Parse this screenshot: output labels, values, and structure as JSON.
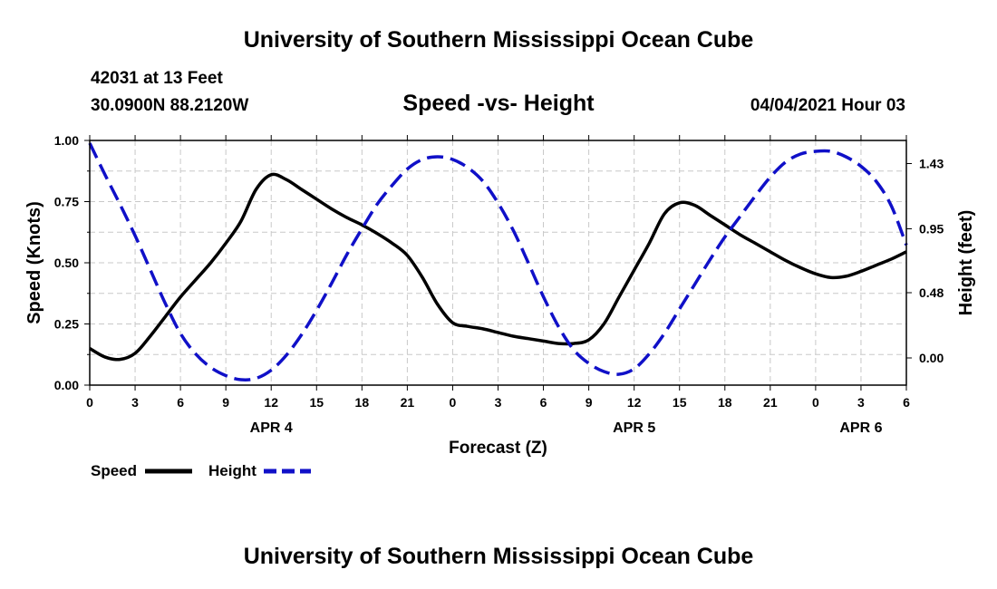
{
  "header": {
    "title": "University of Southern Mississippi Ocean Cube",
    "station": "42031 at 13 Feet",
    "coordinates": "30.0900N  88.2120W",
    "chart_title": "Speed -vs- Height",
    "datetime": "04/04/2021 Hour 03"
  },
  "footer": {
    "title": "University of Southern Mississippi Ocean Cube"
  },
  "colors": {
    "speed": "#000000",
    "height": "#1010c8",
    "grid": "#c8c8c8"
  },
  "chart_data": {
    "type": "line",
    "title": "Speed -vs- Height",
    "xlabel": "Forecast (Z)",
    "ylabel": "Speed (Knots)",
    "y2label": "Height (feet)",
    "x_range": [
      0,
      54
    ],
    "x_ticks": [
      0,
      3,
      6,
      9,
      12,
      15,
      18,
      21,
      24,
      27,
      30,
      33,
      36,
      39,
      42,
      45,
      48,
      51,
      54
    ],
    "x_tick_labels": [
      "0",
      "3",
      "6",
      "9",
      "12",
      "15",
      "18",
      "21",
      "0",
      "3",
      "6",
      "9",
      "12",
      "15",
      "18",
      "21",
      "0",
      "3",
      "6"
    ],
    "date_labels": [
      {
        "hour": 12,
        "label": "APR 4"
      },
      {
        "hour": 36,
        "label": "APR 5"
      },
      {
        "hour": 51,
        "label": "APR 6"
      }
    ],
    "ylim": [
      0,
      1.0
    ],
    "y_ticks": [
      0,
      0.25,
      0.5,
      0.75,
      1.0
    ],
    "y_tick_labels": [
      "0.00",
      "0.25",
      "0.50",
      "0.75",
      "1.00"
    ],
    "y2lim": [
      -0.2,
      1.6
    ],
    "y2_ticks": [
      0.0,
      0.48,
      0.95,
      1.43
    ],
    "y2_tick_labels": [
      "0.00",
      "0.48",
      "0.95",
      "1.43"
    ],
    "legend": [
      {
        "name": "Speed",
        "style": "solid"
      },
      {
        "name": "Height",
        "style": "dashed"
      }
    ],
    "series": [
      {
        "name": "Speed",
        "axis": "left",
        "style": "solid",
        "x": [
          0,
          1,
          2,
          3,
          4,
          5,
          6,
          7,
          8,
          9,
          10,
          11,
          12,
          13,
          14,
          15,
          16,
          17,
          18,
          19,
          20,
          21,
          22,
          23,
          24,
          25,
          26,
          27,
          28,
          29,
          30,
          31,
          32,
          33,
          34,
          35,
          36,
          37,
          38,
          39,
          40,
          41,
          42,
          43,
          44,
          45,
          46,
          47,
          48,
          49,
          50,
          51,
          52,
          53,
          54
        ],
        "values": [
          0.15,
          0.115,
          0.105,
          0.13,
          0.2,
          0.28,
          0.36,
          0.43,
          0.5,
          0.58,
          0.67,
          0.8,
          0.86,
          0.84,
          0.8,
          0.76,
          0.72,
          0.685,
          0.655,
          0.62,
          0.58,
          0.53,
          0.44,
          0.33,
          0.255,
          0.24,
          0.23,
          0.215,
          0.2,
          0.19,
          0.18,
          0.17,
          0.17,
          0.185,
          0.25,
          0.36,
          0.47,
          0.58,
          0.7,
          0.745,
          0.735,
          0.695,
          0.655,
          0.615,
          0.58,
          0.545,
          0.51,
          0.48,
          0.455,
          0.44,
          0.445,
          0.465,
          0.49,
          0.515,
          0.545
        ]
      },
      {
        "name": "Height",
        "axis": "right",
        "style": "dashed",
        "x": [
          0,
          1,
          2,
          3,
          4,
          5,
          6,
          7,
          8,
          9,
          10,
          11,
          12,
          13,
          14,
          15,
          16,
          17,
          18,
          19,
          20,
          21,
          22,
          23,
          24,
          25,
          26,
          27,
          28,
          29,
          30,
          31,
          32,
          33,
          34,
          35,
          36,
          37,
          38,
          39,
          40,
          41,
          42,
          43,
          44,
          45,
          46,
          47,
          48,
          49,
          50,
          51,
          52,
          53,
          54
        ],
        "values": [
          1.58,
          1.35,
          1.13,
          0.9,
          0.65,
          0.4,
          0.18,
          0.03,
          -0.07,
          -0.13,
          -0.16,
          -0.15,
          -0.09,
          0.02,
          0.17,
          0.35,
          0.55,
          0.76,
          0.95,
          1.13,
          1.27,
          1.39,
          1.46,
          1.48,
          1.46,
          1.4,
          1.3,
          1.14,
          0.94,
          0.7,
          0.45,
          0.23,
          0.06,
          -0.04,
          -0.1,
          -0.12,
          -0.08,
          0.03,
          0.18,
          0.36,
          0.54,
          0.72,
          0.89,
          1.04,
          1.19,
          1.33,
          1.44,
          1.5,
          1.52,
          1.52,
          1.48,
          1.41,
          1.3,
          1.12,
          0.83
        ]
      }
    ]
  }
}
